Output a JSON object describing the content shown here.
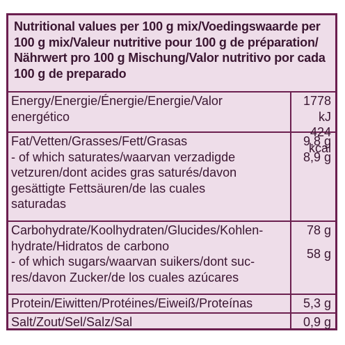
{
  "header": {
    "lines": [
      "Nutritional values per 100 g mix/Voedingswaarde per",
      "100 g mix/Valeur nutritive pour 100 g de préparation/",
      "Nährwert pro 100 g Mischung/Valor nutritivo por cada",
      "100 g de preparado"
    ]
  },
  "rows": {
    "energy": {
      "label": [
        "Energy/Energie/Énergie/Energie/Valor",
        "energético"
      ],
      "values": [
        "1778 kJ",
        "424 kcal"
      ]
    },
    "fat": {
      "label": [
        "Fat/Vetten/Grasses/Fett/Grasas"
      ],
      "value": "9,8 g",
      "sub_label": [
        "- of which saturates/waarvan verzadigde",
        "vetzuren/dont acides gras saturés/davon",
        "gesättigte Fettsäuren/de las cuales",
        "saturadas"
      ],
      "sub_value": "8,9 g"
    },
    "carb": {
      "label": [
        "Carbohydrate/Koolhydraten/Glucides/Kohlen-",
        "hydrate/Hidratos de carbono"
      ],
      "value": "78 g",
      "sub_label": [
        "- of which sugars/waarvan suikers/dont suc-",
        "res/davon Zucker/de los cuales azúcares"
      ],
      "sub_value": "58 g"
    },
    "protein": {
      "label": "Protein/Eiwitten/Protéines/Eiweiß/Proteínas",
      "value": "5,3 g"
    },
    "salt": {
      "label": "Salt/Zout/Sel/Salz/Sal",
      "value": "0,9 g"
    }
  },
  "colors": {
    "background": "#eedde9",
    "border": "#6b1f4f",
    "text": "#3a1631"
  }
}
